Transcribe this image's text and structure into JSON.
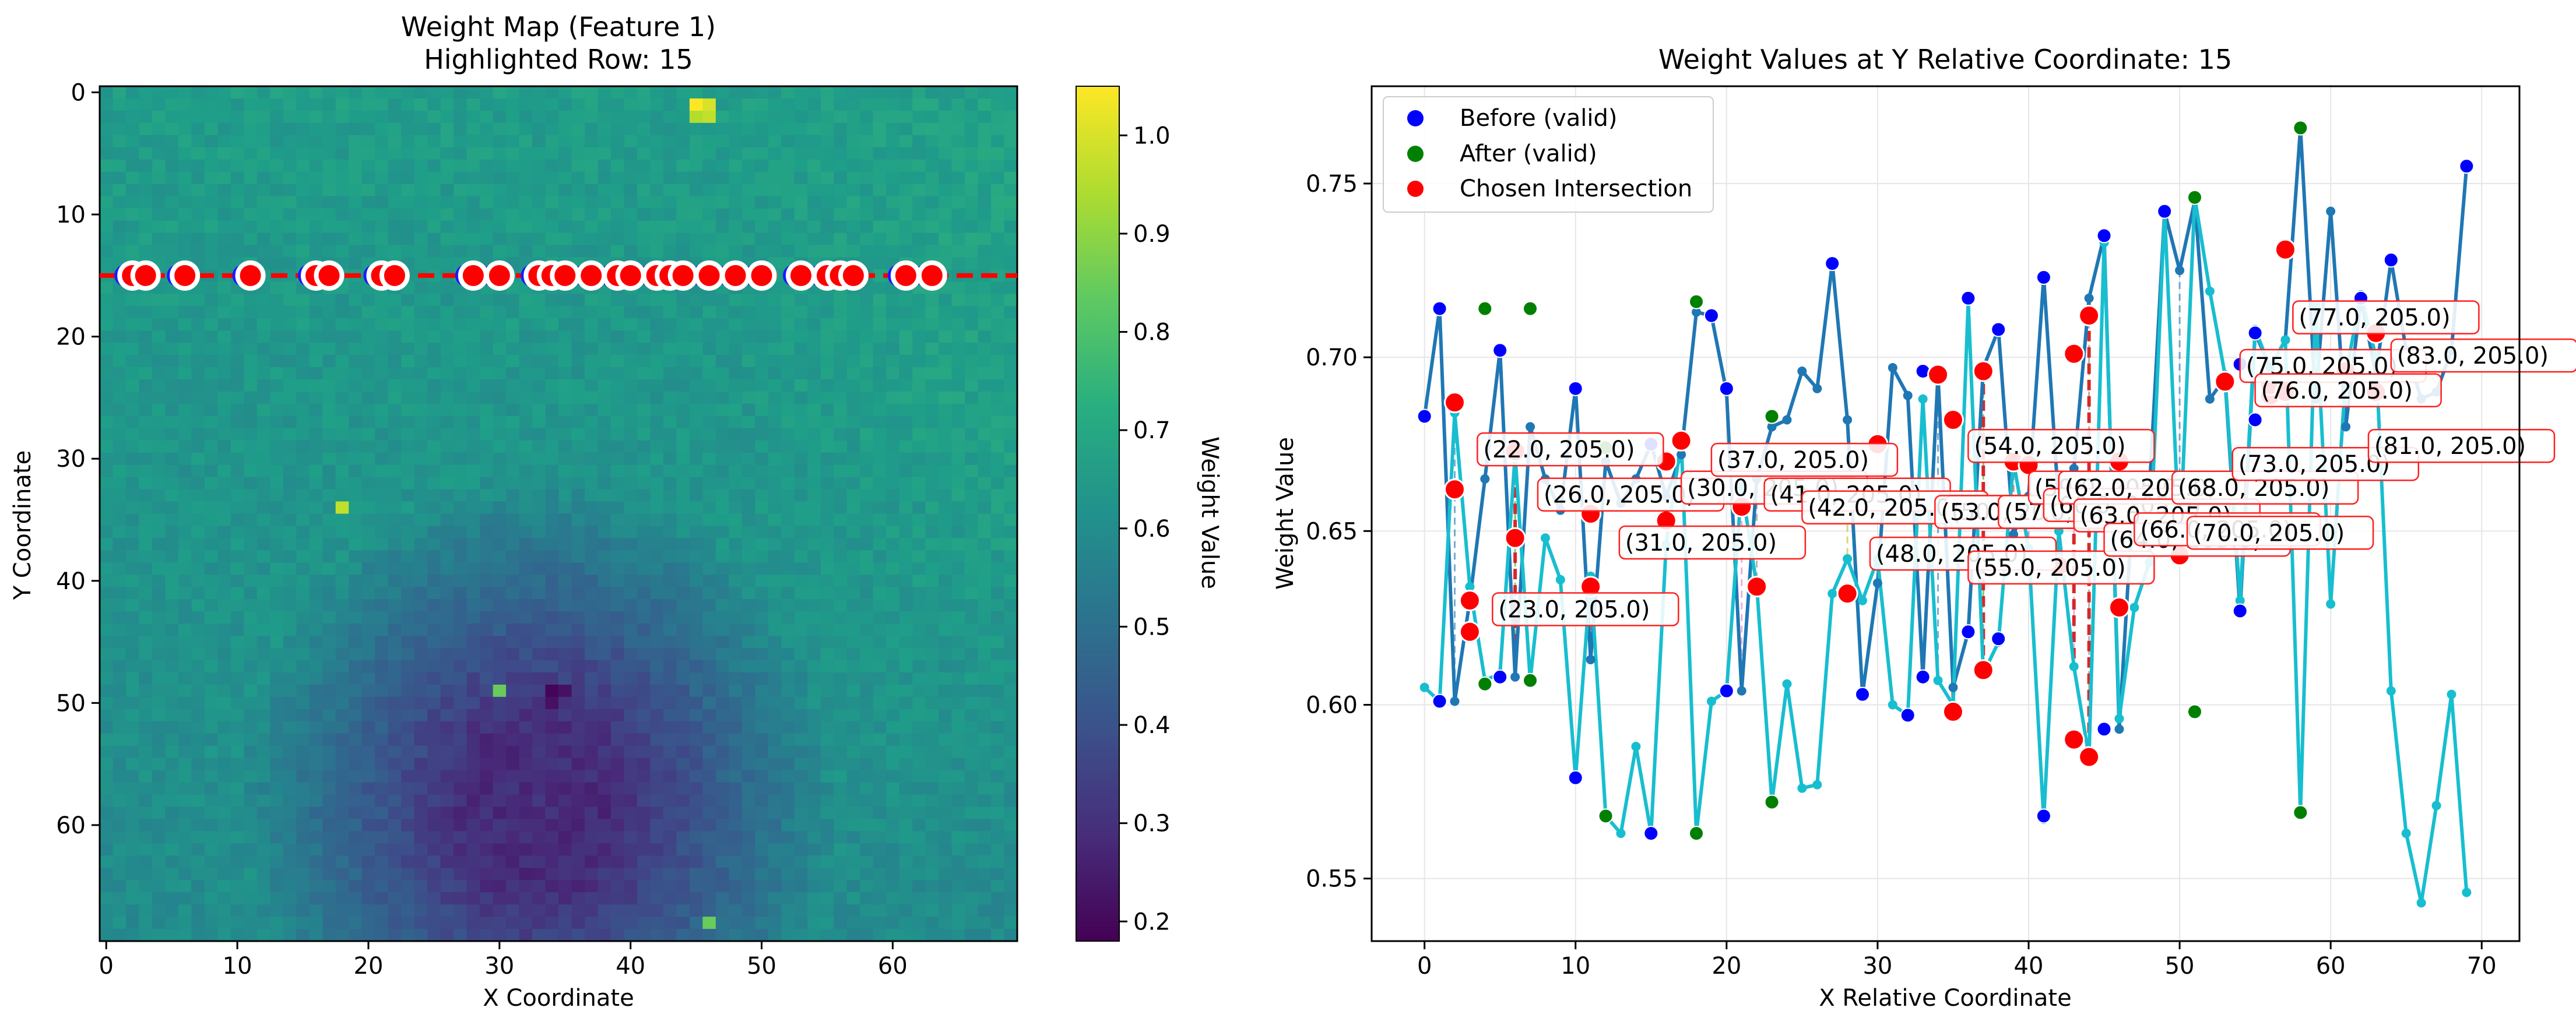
{
  "chart_data": [
    {
      "type": "heatmap",
      "title_line1": "Weight Map (Feature 1)",
      "title_line2": "Highlighted Row: 15",
      "xlabel": "X Coordinate",
      "ylabel": "Y Coordinate",
      "xlim": [
        -0.5,
        69.5
      ],
      "ylim": [
        69.5,
        -0.5
      ],
      "x_ticks": [
        0,
        10,
        20,
        30,
        40,
        50,
        60
      ],
      "y_ticks": [
        0,
        10,
        20,
        30,
        40,
        50,
        60
      ],
      "colormap": "viridis",
      "colorbar": {
        "label": "Weight Value",
        "min": 0.18,
        "max": 1.05,
        "ticks": [
          0.2,
          0.3,
          0.4,
          0.5,
          0.6,
          0.7,
          0.8,
          0.9,
          1.0
        ]
      },
      "highlighted_row": 15,
      "highlight_line_color": "#ff0000",
      "marker_x_positions": [
        2,
        3,
        6,
        11,
        16,
        17,
        21,
        22,
        28,
        30,
        33,
        34,
        35,
        37,
        39,
        40,
        42,
        43,
        44,
        46,
        48,
        50,
        53,
        55,
        56,
        57,
        61,
        63
      ],
      "hotspots": [
        {
          "x": 45,
          "y": 1,
          "value": 1.05
        },
        {
          "x": 46,
          "y": 1,
          "value": 1.0
        },
        {
          "x": 45,
          "y": 2,
          "value": 0.95
        },
        {
          "x": 46,
          "y": 2,
          "value": 0.97
        },
        {
          "x": 18,
          "y": 34,
          "value": 0.97
        },
        {
          "x": 30,
          "y": 49,
          "value": 0.85
        },
        {
          "x": 34,
          "y": 49,
          "value": 0.19
        },
        {
          "x": 35,
          "y": 49,
          "value": 0.22
        },
        {
          "x": 34,
          "y": 50,
          "value": 0.22
        },
        {
          "x": 46,
          "y": 68,
          "value": 0.85
        }
      ]
    },
    {
      "type": "line",
      "title": "Weight Values at Y Relative Coordinate: 15",
      "xlabel": "X Relative Coordinate",
      "ylabel": "Weight Value",
      "xlim": [
        -3.5,
        72.5
      ],
      "ylim": [
        0.532,
        0.778
      ],
      "x_ticks": [
        0,
        10,
        20,
        30,
        40,
        50,
        60,
        70
      ],
      "y_ticks": [
        0.55,
        0.6,
        0.65,
        0.7,
        0.75
      ],
      "grid": true,
      "legend_position": "top-left",
      "legend": [
        {
          "label": "Before (valid)",
          "color": "#0000ff"
        },
        {
          "label": "After (valid)",
          "color": "#008000"
        },
        {
          "label": "Chosen Intersection",
          "color": "#ff0000"
        }
      ],
      "series": [
        {
          "color": "#1f77b4",
          "values": [
            0.683,
            0.714,
            0.601,
            0.63,
            0.665,
            0.702,
            0.608,
            0.68,
            0.665,
            0.656,
            0.691,
            0.613,
            0.67,
            0.658,
            0.665,
            0.675,
            0.66,
            0.672,
            0.713,
            0.712,
            0.69,
            0.604,
            0.665,
            0.68,
            0.682,
            0.696,
            0.691,
            0.727,
            0.682,
            0.603,
            0.635,
            0.697,
            0.689,
            0.608,
            0.695,
            0.605,
            0.621,
            0.697,
            0.708,
            0.649,
            0.66,
            0.723,
            0.657,
            0.668,
            0.717,
            0.735,
            0.593,
            0.665,
            0.662,
            0.742,
            0.725,
            0.745,
            0.688,
            0.694,
            0.627,
            0.707,
            0.697,
            0.705,
            0.766,
            0.688,
            0.742,
            0.68,
            0.717,
            0.695,
            0.728,
            0.702,
            0.688,
            0.69,
            0.702,
            0.755
          ]
        },
        {
          "color": "#17becf",
          "values": [
            0.605,
            0.601,
            0.684,
            0.634,
            0.607,
            0.609,
            0.672,
            0.607,
            0.648,
            0.636,
            0.579,
            0.637,
            0.568,
            0.563,
            0.588,
            0.563,
            0.646,
            0.676,
            0.563,
            0.601,
            0.604,
            0.663,
            0.634,
            0.572,
            0.606,
            0.576,
            0.577,
            0.632,
            0.642,
            0.63,
            0.642,
            0.6,
            0.597,
            0.688,
            0.607,
            0.6,
            0.716,
            0.609,
            0.618,
            0.67,
            0.645,
            0.567,
            0.65,
            0.611,
            0.585,
            0.733,
            0.596,
            0.628,
            0.641,
            0.742,
            0.645,
            0.746,
            0.719,
            0.695,
            0.63,
            0.708,
            0.697,
            0.705,
            0.569,
            0.715,
            0.629,
            0.695,
            0.718,
            0.7,
            0.604,
            0.563,
            0.543,
            0.571,
            0.603,
            0.546
          ]
        }
      ],
      "before_points": [
        [
          0,
          0.683
        ],
        [
          1,
          0.714
        ],
        [
          1,
          0.601
        ],
        [
          5,
          0.702
        ],
        [
          5,
          0.608
        ],
        [
          10,
          0.691
        ],
        [
          10,
          0.579
        ],
        [
          15,
          0.675
        ],
        [
          15,
          0.563
        ],
        [
          19,
          0.712
        ],
        [
          20,
          0.691
        ],
        [
          20,
          0.604
        ],
        [
          27,
          0.727
        ],
        [
          29,
          0.603
        ],
        [
          32,
          0.597
        ],
        [
          33,
          0.696
        ],
        [
          33,
          0.608
        ],
        [
          36,
          0.717
        ],
        [
          36,
          0.621
        ],
        [
          38,
          0.708
        ],
        [
          38,
          0.619
        ],
        [
          41,
          0.723
        ],
        [
          41,
          0.568
        ],
        [
          45,
          0.735
        ],
        [
          45,
          0.593
        ],
        [
          49,
          0.742
        ],
        [
          54,
          0.698
        ],
        [
          54,
          0.627
        ],
        [
          55,
          0.707
        ],
        [
          55,
          0.682
        ],
        [
          62,
          0.717
        ],
        [
          64,
          0.728
        ],
        [
          69,
          0.755
        ]
      ],
      "after_points": [
        [
          4,
          0.714
        ],
        [
          4,
          0.606
        ],
        [
          7,
          0.714
        ],
        [
          7,
          0.607
        ],
        [
          12,
          0.674
        ],
        [
          12,
          0.568
        ],
        [
          18,
          0.716
        ],
        [
          18,
          0.563
        ],
        [
          23,
          0.683
        ],
        [
          23,
          0.572
        ],
        [
          51,
          0.746
        ],
        [
          51,
          0.598
        ],
        [
          58,
          0.766
        ],
        [
          58,
          0.569
        ]
      ],
      "chosen_points": [
        [
          2,
          0.687
        ],
        [
          2,
          0.662
        ],
        [
          3,
          0.63
        ],
        [
          3,
          0.621
        ],
        [
          6,
          0.673
        ],
        [
          6,
          0.648
        ],
        [
          11,
          0.655
        ],
        [
          11,
          0.634
        ],
        [
          16,
          0.67
        ],
        [
          16,
          0.653
        ],
        [
          17,
          0.676
        ],
        [
          21,
          0.657
        ],
        [
          22,
          0.634
        ],
        [
          28,
          0.664
        ],
        [
          28,
          0.632
        ],
        [
          30,
          0.675
        ],
        [
          34,
          0.695
        ],
        [
          35,
          0.682
        ],
        [
          35,
          0.598
        ],
        [
          37,
          0.696
        ],
        [
          37,
          0.61
        ],
        [
          39,
          0.67
        ],
        [
          40,
          0.669
        ],
        [
          42,
          0.64
        ],
        [
          43,
          0.701
        ],
        [
          43,
          0.59
        ],
        [
          44,
          0.712
        ],
        [
          44,
          0.585
        ],
        [
          46,
          0.67
        ],
        [
          46,
          0.628
        ],
        [
          48,
          0.662
        ],
        [
          50,
          0.643
        ],
        [
          53,
          0.693
        ],
        [
          56,
          0.689
        ],
        [
          56,
          0.692
        ],
        [
          57,
          0.731
        ],
        [
          57,
          0.69
        ],
        [
          61,
          0.696
        ],
        [
          63,
          0.707
        ],
        [
          63,
          0.69
        ]
      ],
      "annotations": [
        "(22.0, 205.0)",
        "(23.0, 205.0)",
        "(26.0, 205.0)",
        "(30.0, 205.0)",
        "(31.0, 205.0)",
        "(37.0, 205.0)",
        "(41.0, 205.0)",
        "(42.0, 205.0)",
        "(48.0, 205.0)",
        "(50.0, 205.0)",
        "(53.0, 205.0)",
        "(54.0, 205.0)",
        "(55.0, 205.0)",
        "(57.0, 205.0)",
        "(59.0, 205.0)",
        "(60.0, 205.0)",
        "(62.0, 205.0)",
        "(63.0, 205.0)",
        "(64.0, 205.0)",
        "(66.0, 205.0)",
        "(68.0, 205.0)",
        "(70.0, 205.0)",
        "(73.0, 205.0)",
        "(75.0, 205.0)",
        "(76.0, 205.0)",
        "(77.0, 205.0)",
        "(81.0, 205.0)",
        "(83.0, 205.0)"
      ]
    }
  ]
}
